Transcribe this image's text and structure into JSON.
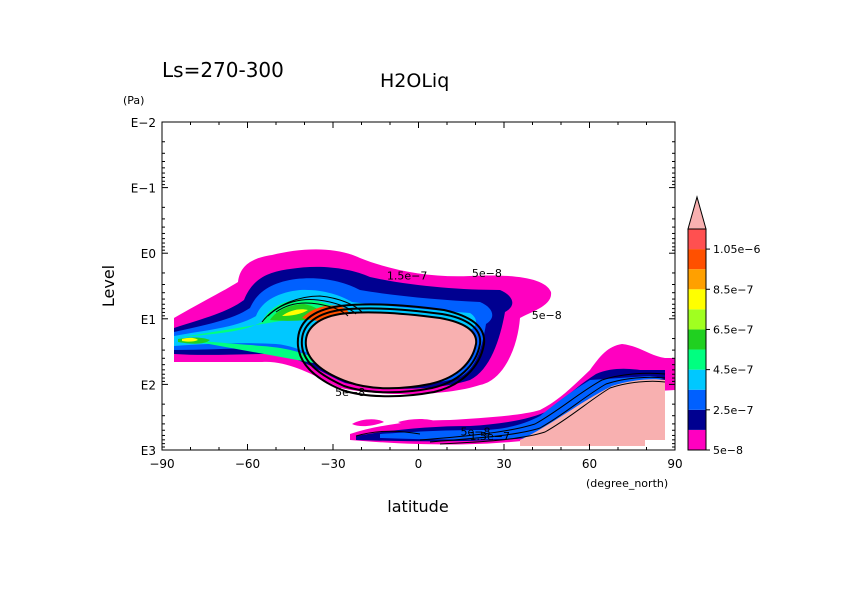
{
  "chart_data": {
    "type": "contour",
    "title_left": "Ls=270-300",
    "title_center": "H2OLiq",
    "xlabel": "latitude",
    "xunit": "(degree_north)",
    "ylabel": "Level",
    "yunit": "(Pa)",
    "x_range": [
      -90,
      90
    ],
    "x_ticks": [
      {
        "value": -90,
        "label": "−90"
      },
      {
        "value": -60,
        "label": "−60"
      },
      {
        "value": -30,
        "label": "−30"
      },
      {
        "value": 0,
        "label": "0"
      },
      {
        "value": 30,
        "label": "30"
      },
      {
        "value": 60,
        "label": "60"
      },
      {
        "value": 90,
        "label": "90"
      }
    ],
    "y_scale": "log",
    "y_range": [
      0.01,
      1000
    ],
    "y_ticks": [
      {
        "value": 0.01,
        "label": "E−2"
      },
      {
        "value": 0.1,
        "label": "E−1"
      },
      {
        "value": 1,
        "label": "E0"
      },
      {
        "value": 10,
        "label": "E1"
      },
      {
        "value": 100,
        "label": "E2"
      },
      {
        "value": 1000,
        "label": "E3"
      }
    ],
    "colorbar": {
      "labels": [
        "5e−8",
        "2.5e−7",
        "4.5e−7",
        "6.5e−7",
        "8.5e−7",
        "1.05e−6"
      ],
      "colors": [
        "#ff00c0",
        "#000090",
        "#0060ff",
        "#00c8ff",
        "#00ff80",
        "#20d020",
        "#a0ff20",
        "#ffff00",
        "#ffa000",
        "#ff5000",
        "#ff5050",
        "#f8b0b0"
      ]
    },
    "contour_labels": [
      {
        "text": "1.5e−7",
        "lat": -4,
        "level": 2.5
      },
      {
        "text": "5e−8",
        "lat": 24,
        "level": 2.3
      },
      {
        "text": "5e−8",
        "lat": 45,
        "level": 10
      },
      {
        "text": "5e−8",
        "lat": -24,
        "level": 150
      },
      {
        "text": "5e−8",
        "lat": 20,
        "level": 600
      },
      {
        "text": "1.5e−7",
        "lat": 25,
        "level": 700
      }
    ]
  }
}
